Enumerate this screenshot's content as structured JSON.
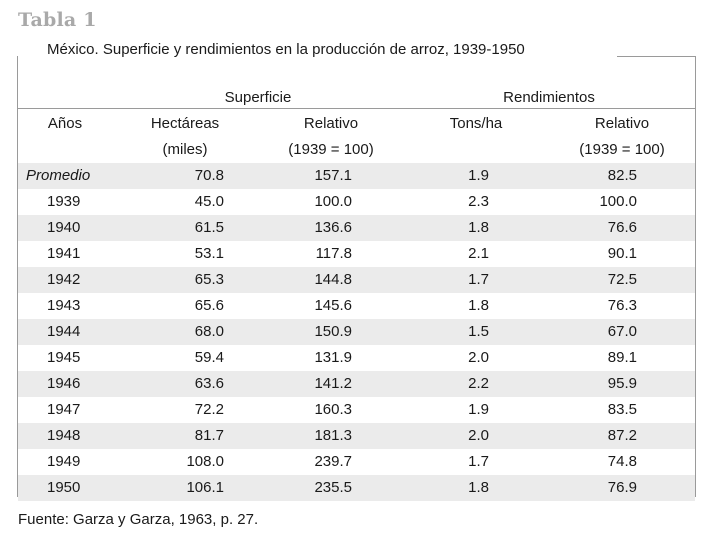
{
  "label": "Tabla 1",
  "title": "México. Superficie y rendimientos en la producción de arroz, 1939-1950",
  "groups": {
    "superficie": "Superficie",
    "rendimientos": "Rendimientos"
  },
  "columns": {
    "anios": "Años",
    "hectareas": "Hectáreas",
    "hectareas_unit": "(miles)",
    "relativo1": "Relativo",
    "relativo1_unit": "(1939 = 100)",
    "tons": "Tons/ha",
    "relativo2": "Relativo",
    "relativo2_unit": "(1939 = 100)"
  },
  "rows": [
    {
      "year": "Promedio",
      "hectareas": "70.8",
      "relativo1": "157.1",
      "tons": "1.9",
      "relativo2": "82.5"
    },
    {
      "year": "1939",
      "hectareas": "45.0",
      "relativo1": "100.0",
      "tons": "2.3",
      "relativo2": "100.0"
    },
    {
      "year": "1940",
      "hectareas": "61.5",
      "relativo1": "136.6",
      "tons": "1.8",
      "relativo2": "76.6"
    },
    {
      "year": "1941",
      "hectareas": "53.1",
      "relativo1": "117.8",
      "tons": "2.1",
      "relativo2": "90.1"
    },
    {
      "year": "1942",
      "hectareas": "65.3",
      "relativo1": "144.8",
      "tons": "1.7",
      "relativo2": "72.5"
    },
    {
      "year": "1943",
      "hectareas": "65.6",
      "relativo1": "145.6",
      "tons": "1.8",
      "relativo2": "76.3"
    },
    {
      "year": "1944",
      "hectareas": "68.0",
      "relativo1": "150.9",
      "tons": "1.5",
      "relativo2": "67.0"
    },
    {
      "year": "1945",
      "hectareas": "59.4",
      "relativo1": "131.9",
      "tons": "2.0",
      "relativo2": "89.1"
    },
    {
      "year": "1946",
      "hectareas": "63.6",
      "relativo1": "141.2",
      "tons": "2.2",
      "relativo2": "95.9"
    },
    {
      "year": "1947",
      "hectareas": "72.2",
      "relativo1": "160.3",
      "tons": "1.9",
      "relativo2": "83.5"
    },
    {
      "year": "1948",
      "hectareas": "81.7",
      "relativo1": "181.3",
      "tons": "2.0",
      "relativo2": "87.2"
    },
    {
      "year": "1949",
      "hectareas": "108.0",
      "relativo1": "239.7",
      "tons": "1.7",
      "relativo2": "74.8"
    },
    {
      "year": "1950",
      "hectareas": "106.1",
      "relativo1": "235.5",
      "tons": "1.8",
      "relativo2": "76.9"
    }
  ],
  "source": "Fuente: Garza y Garza, 1963, p. 27."
}
